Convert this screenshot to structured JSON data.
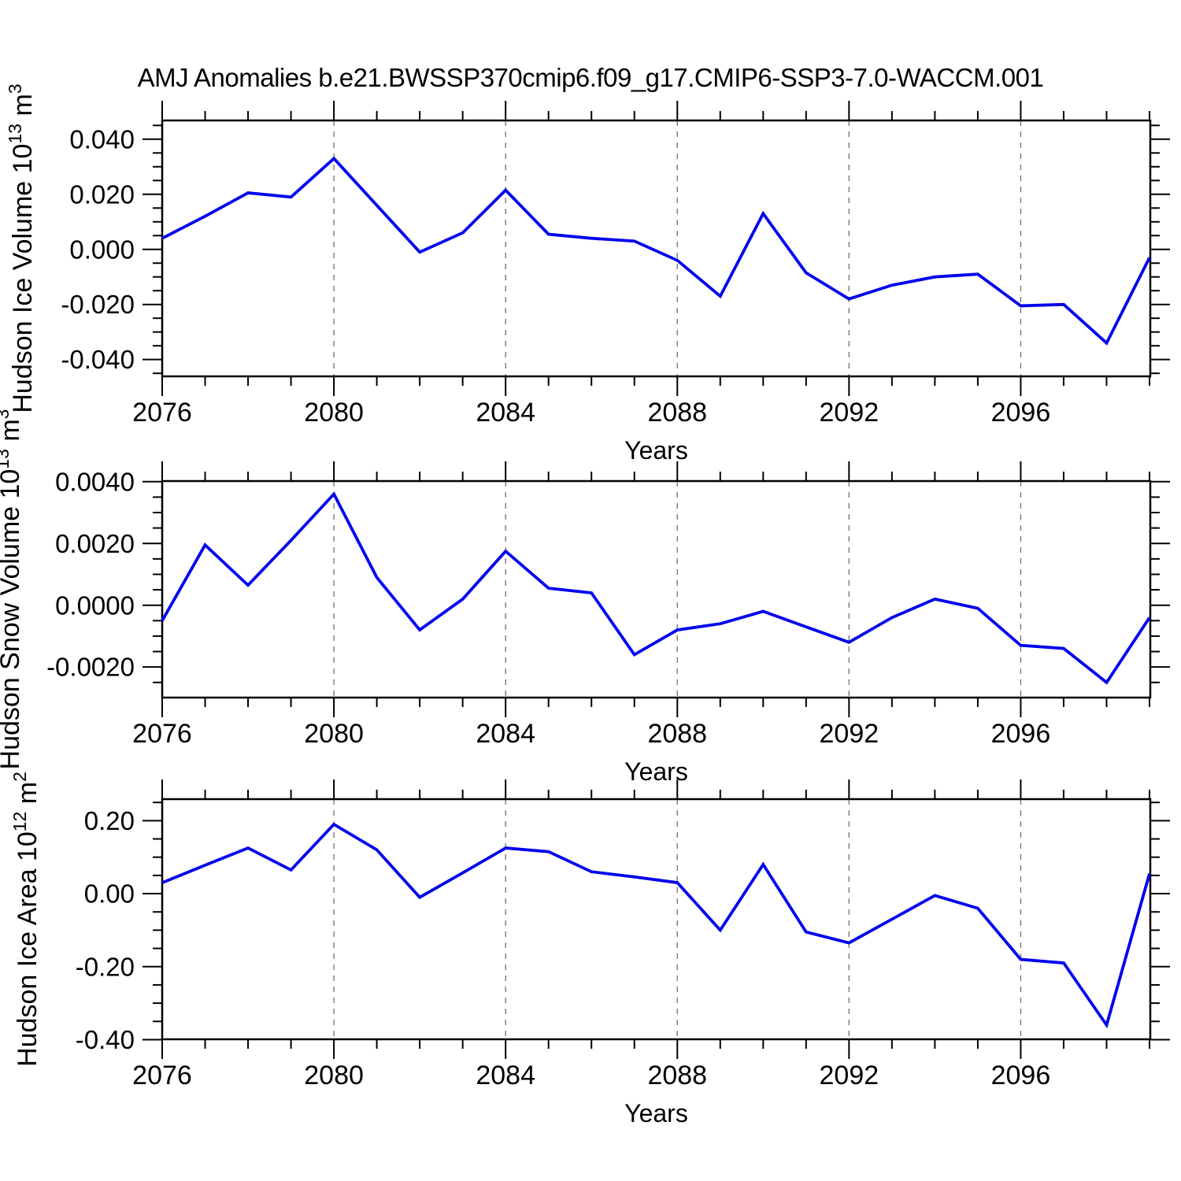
{
  "title": "AMJ Anomalies b.e21.BWSSP370cmip6.f09_g17.CMIP6-SSP3-7.0-WACCM.001",
  "line_color": "#0000ee",
  "grid_color": "#7a7a7a",
  "frame_color": "#000000",
  "chart_data": [
    {
      "type": "line",
      "name": "hudson-ice-volume",
      "xlabel": "Years",
      "ylabel_parts": [
        {
          "t": "Hudson Ice Volume 10"
        },
        {
          "t": "13",
          "sup": true
        },
        {
          "t": " m"
        },
        {
          "t": "3",
          "sup": true
        }
      ],
      "x": [
        2076,
        2077,
        2078,
        2079,
        2080,
        2081,
        2082,
        2083,
        2084,
        2085,
        2086,
        2087,
        2088,
        2089,
        2090,
        2091,
        2092,
        2093,
        2094,
        2095,
        2096,
        2097,
        2098,
        2099
      ],
      "values": [
        0.004,
        0.012,
        0.0205,
        0.019,
        0.033,
        0.016,
        -0.001,
        0.006,
        0.0215,
        0.0055,
        0.004,
        0.003,
        -0.004,
        -0.017,
        0.013,
        -0.0085,
        -0.018,
        -0.013,
        -0.01,
        -0.009,
        -0.0205,
        -0.02,
        -0.034,
        -0.003
      ],
      "xlim": [
        2076,
        2099
      ],
      "ylim": [
        -0.0461,
        0.0468
      ],
      "yticks": [
        {
          "v": 0.04,
          "l": "0.040"
        },
        {
          "v": 0.02,
          "l": "0.020"
        },
        {
          "v": 0.0,
          "l": "0.000"
        },
        {
          "v": -0.02,
          "l": "-0.020"
        },
        {
          "v": -0.04,
          "l": "-0.040"
        }
      ],
      "y_minor_step": 0.005,
      "xticks_major": [
        2076,
        2080,
        2084,
        2088,
        2092,
        2096
      ],
      "xtick_labels": [
        "2076",
        "2080",
        "2084",
        "2088",
        "2092",
        "2096"
      ],
      "grid_x": [
        2080,
        2084,
        2088,
        2092,
        2096
      ]
    },
    {
      "type": "line",
      "name": "hudson-snow-volume",
      "xlabel": "Years",
      "ylabel_parts": [
        {
          "t": "Hudson Snow Volume 10"
        },
        {
          "t": "13",
          "sup": true
        },
        {
          "t": " m"
        },
        {
          "t": "3",
          "sup": true
        }
      ],
      "x": [
        2076,
        2077,
        2078,
        2079,
        2080,
        2081,
        2082,
        2083,
        2084,
        2085,
        2086,
        2087,
        2088,
        2089,
        2090,
        2091,
        2092,
        2093,
        2094,
        2095,
        2096,
        2097,
        2098,
        2099
      ],
      "values": [
        -0.0005,
        0.00195,
        0.00065,
        0.0021,
        0.0036,
        0.0009,
        -0.0008,
        0.0002,
        0.00175,
        0.00055,
        0.0004,
        -0.0016,
        -0.0008,
        -0.0006,
        -0.0002,
        -0.0007,
        -0.0012,
        -0.0004,
        0.0002,
        -0.0001,
        -0.0013,
        -0.0014,
        -0.0025,
        -0.0004
      ],
      "xlim": [
        2076,
        2099
      ],
      "ylim": [
        -0.00299,
        0.00402
      ],
      "yticks": [
        {
          "v": 0.004,
          "l": "0.0040"
        },
        {
          "v": 0.002,
          "l": "0.0020"
        },
        {
          "v": 0.0,
          "l": "0.0000"
        },
        {
          "v": -0.002,
          "l": "-0.0020"
        }
      ],
      "y_minor_step": 0.0005,
      "xticks_major": [
        2076,
        2080,
        2084,
        2088,
        2092,
        2096
      ],
      "xtick_labels": [
        "2076",
        "2080",
        "2084",
        "2088",
        "2092",
        "2096"
      ],
      "grid_x": [
        2080,
        2084,
        2088,
        2092,
        2096
      ]
    },
    {
      "type": "line",
      "name": "hudson-ice-area",
      "xlabel": "Years",
      "ylabel_parts": [
        {
          "t": "Hudson Ice Area 10"
        },
        {
          "t": "12",
          "sup": true
        },
        {
          "t": " m"
        },
        {
          "t": "2",
          "sup": true
        }
      ],
      "x": [
        2076,
        2077,
        2078,
        2079,
        2080,
        2081,
        2082,
        2083,
        2084,
        2085,
        2086,
        2087,
        2088,
        2089,
        2090,
        2091,
        2092,
        2093,
        2094,
        2095,
        2096,
        2097,
        2098,
        2099
      ],
      "values": [
        0.03,
        0.078,
        0.125,
        0.065,
        0.19,
        0.12,
        -0.01,
        0.057,
        0.125,
        0.115,
        0.06,
        0.046,
        0.03,
        -0.1,
        0.08,
        -0.105,
        -0.135,
        -0.07,
        -0.005,
        -0.04,
        -0.18,
        -0.19,
        -0.36,
        0.055
      ],
      "xlim": [
        2076,
        2099
      ],
      "ylim": [
        -0.399,
        0.259
      ],
      "yticks": [
        {
          "v": 0.2,
          "l": "0.20"
        },
        {
          "v": 0.0,
          "l": "0.00"
        },
        {
          "v": -0.2,
          "l": "-0.20"
        },
        {
          "v": -0.4,
          "l": "-0.40"
        }
      ],
      "y_minor_step": 0.05,
      "xticks_major": [
        2076,
        2080,
        2084,
        2088,
        2092,
        2096
      ],
      "xtick_labels": [
        "2076",
        "2080",
        "2084",
        "2088",
        "2092",
        "2096"
      ],
      "grid_x": [
        2080,
        2084,
        2088,
        2092,
        2096
      ]
    }
  ]
}
